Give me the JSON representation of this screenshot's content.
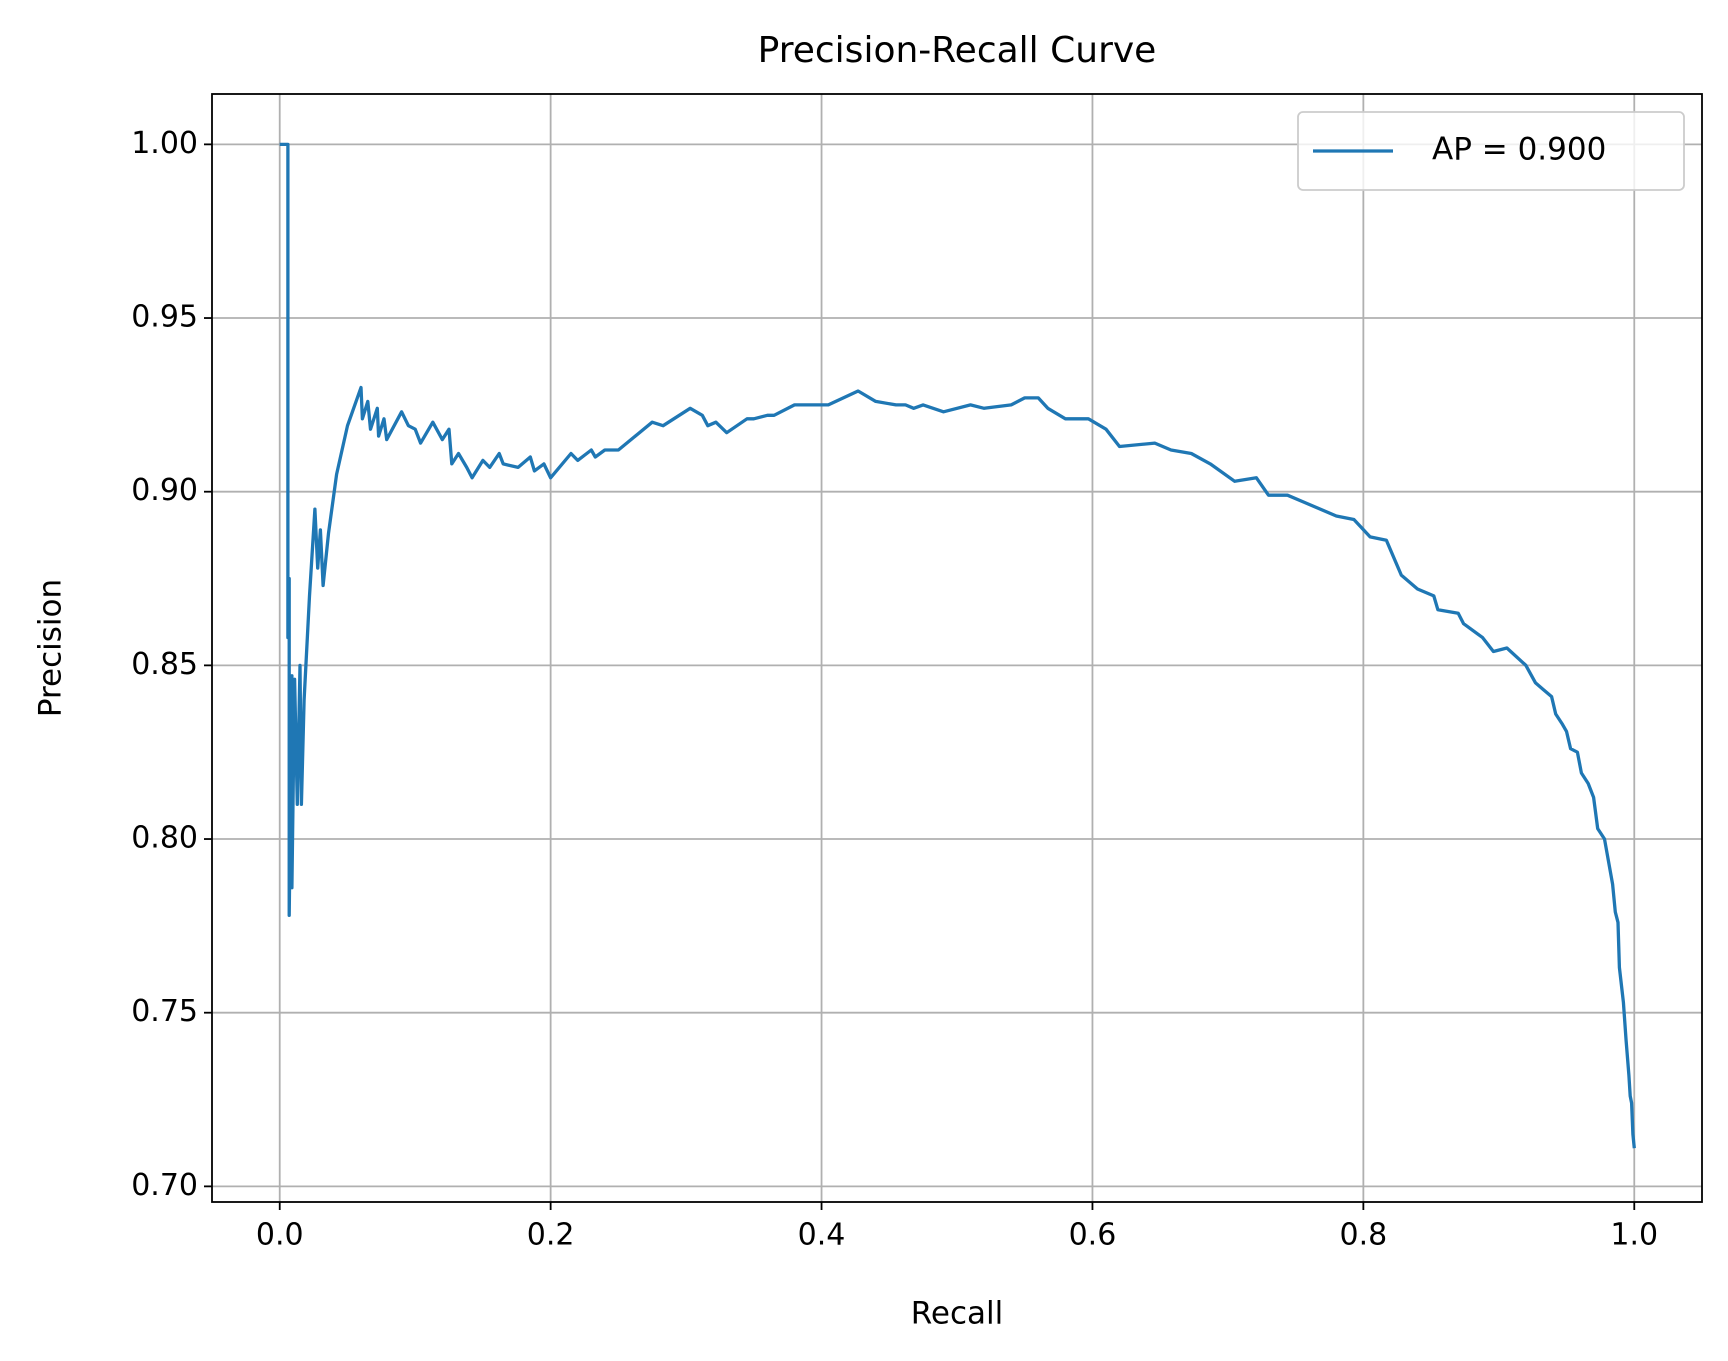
{
  "chart_data": {
    "type": "line",
    "title": "Precision-Recall Curve",
    "x_label": "Recall",
    "y_label": "Precision",
    "xlim": [
      -0.05,
      1.05
    ],
    "ylim": [
      0.6955,
      1.0145
    ],
    "xticks": [
      {
        "value": 0,
        "label": "0.0"
      },
      {
        "value": 0.2,
        "label": "0.2"
      },
      {
        "value": 0.4,
        "label": "0.4"
      },
      {
        "value": 0.6,
        "label": "0.6"
      },
      {
        "value": 0.8,
        "label": "0.8"
      },
      {
        "value": 1,
        "label": "1.0"
      }
    ],
    "yticks": [
      {
        "value": 0.7,
        "label": "0.70"
      },
      {
        "value": 0.75,
        "label": "0.75"
      },
      {
        "value": 0.8,
        "label": "0.80"
      },
      {
        "value": 0.85,
        "label": "0.85"
      },
      {
        "value": 0.9,
        "label": "0.90"
      },
      {
        "value": 0.95,
        "label": "0.95"
      },
      {
        "value": 1,
        "label": "1.00"
      }
    ],
    "grid": true,
    "legend": "upper right",
    "series": [
      {
        "name": "AP = 0.900",
        "color": "#1f77b4",
        "x": [
          0,
          0.006,
          0.006,
          0.007,
          0.007,
          0.009,
          0.009,
          0.011,
          0.013,
          0.015,
          0.016,
          0.018,
          0.022,
          0.026,
          0.028,
          0.03,
          0.032,
          0.036,
          0.042,
          0.05,
          0.06,
          0.061,
          0.065,
          0.067,
          0.072,
          0.073,
          0.077,
          0.079,
          0.09,
          0.095,
          0.1,
          0.104,
          0.113,
          0.12,
          0.125,
          0.127,
          0.132,
          0.138,
          0.142,
          0.15,
          0.155,
          0.162,
          0.165,
          0.176,
          0.185,
          0.188,
          0.195,
          0.2,
          0.215,
          0.22,
          0.23,
          0.233,
          0.24,
          0.25,
          0.275,
          0.283,
          0.303,
          0.312,
          0.316,
          0.322,
          0.33,
          0.345,
          0.35,
          0.36,
          0.365,
          0.38,
          0.395,
          0.405,
          0.427,
          0.44,
          0.455,
          0.462,
          0.468,
          0.475,
          0.49,
          0.51,
          0.52,
          0.54,
          0.55,
          0.56,
          0.567,
          0.58,
          0.597,
          0.61,
          0.62,
          0.646,
          0.658,
          0.673,
          0.687,
          0.705,
          0.721,
          0.73,
          0.744,
          0.756,
          0.78,
          0.793,
          0.805,
          0.817,
          0.828,
          0.84,
          0.852,
          0.855,
          0.87,
          0.874,
          0.888,
          0.896,
          0.906,
          0.92,
          0.927,
          0.933,
          0.939,
          0.942,
          0.947,
          0.95,
          0.953,
          0.958,
          0.961,
          0.966,
          0.97,
          0.973,
          0.978,
          0.984,
          0.986,
          0.988,
          0.989,
          0.992,
          0.994,
          0.996,
          0.997,
          0.998,
          0.999,
          1
        ],
        "values": [
          1,
          1,
          0.858,
          0.875,
          0.778,
          0.847,
          0.786,
          0.846,
          0.81,
          0.85,
          0.81,
          0.84,
          0.87,
          0.895,
          0.878,
          0.889,
          0.873,
          0.888,
          0.905,
          0.919,
          0.93,
          0.921,
          0.926,
          0.918,
          0.924,
          0.916,
          0.921,
          0.915,
          0.923,
          0.919,
          0.918,
          0.914,
          0.92,
          0.915,
          0.918,
          0.908,
          0.911,
          0.907,
          0.904,
          0.909,
          0.907,
          0.911,
          0.908,
          0.907,
          0.91,
          0.906,
          0.908,
          0.904,
          0.911,
          0.909,
          0.912,
          0.91,
          0.912,
          0.912,
          0.92,
          0.919,
          0.924,
          0.922,
          0.919,
          0.92,
          0.917,
          0.921,
          0.921,
          0.922,
          0.922,
          0.925,
          0.925,
          0.925,
          0.929,
          0.926,
          0.925,
          0.925,
          0.924,
          0.925,
          0.923,
          0.925,
          0.924,
          0.925,
          0.927,
          0.927,
          0.924,
          0.921,
          0.921,
          0.918,
          0.913,
          0.914,
          0.912,
          0.911,
          0.908,
          0.903,
          0.904,
          0.899,
          0.899,
          0.897,
          0.893,
          0.892,
          0.887,
          0.886,
          0.876,
          0.872,
          0.87,
          0.866,
          0.865,
          0.862,
          0.858,
          0.854,
          0.855,
          0.85,
          0.845,
          0.843,
          0.841,
          0.836,
          0.833,
          0.831,
          0.826,
          0.825,
          0.819,
          0.816,
          0.812,
          0.803,
          0.8,
          0.787,
          0.779,
          0.776,
          0.763,
          0.753,
          0.742,
          0.732,
          0.726,
          0.724,
          0.715,
          0.711
        ]
      }
    ]
  }
}
